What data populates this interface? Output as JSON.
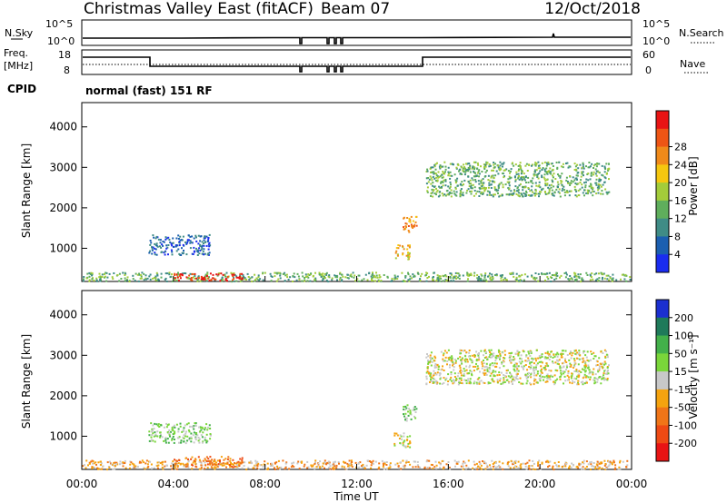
{
  "header": {
    "title": "Christmas Valley East (fitACF)",
    "beam": "Beam 07",
    "date": "12/Oct/2018"
  },
  "nsky_panel": {
    "label": "N.Sky",
    "left_ticks": [
      "10^5",
      "10^0"
    ],
    "right_label": "N.Search",
    "right_ticks": [
      "10^5",
      "10^0"
    ]
  },
  "freq_panel": {
    "label_line1": "Freq.",
    "label_line2": "[MHz]",
    "left_ticks": [
      "18",
      "8"
    ],
    "right_label": "Nave",
    "right_ticks": [
      "60",
      "0"
    ]
  },
  "cpid": {
    "label": "CPID",
    "text": "normal (fast) 151 RF"
  },
  "chart_data": [
    {
      "type": "heatmap",
      "title": "",
      "xlabel": "",
      "ylabel": "Slant Range [km]",
      "ylim": [
        180,
        4600
      ],
      "yticks": [
        "1000",
        "2000",
        "3000",
        "4000"
      ],
      "colorbar_label": "Power [dB]",
      "colorbar_ticks": [
        "4",
        "8",
        "12",
        "16",
        "20",
        "24",
        "28"
      ],
      "colors": [
        "#1a2cf0",
        "#1b5fb0",
        "#3f8c86",
        "#5fae5c",
        "#a3cc3a",
        "#f5c70f",
        "#f08a1a",
        "#ee5515",
        "#e81414"
      ],
      "regions": [
        {
          "t0": 0.0,
          "t1": 24.0,
          "r0": 200,
          "r1": 420,
          "level": 3
        },
        {
          "t0": 4.0,
          "t1": 7.0,
          "r0": 220,
          "r1": 400,
          "level": 8
        },
        {
          "t0": 2.9,
          "t1": 5.6,
          "r0": 850,
          "r1": 1350,
          "level": 1
        },
        {
          "t0": 13.6,
          "t1": 14.3,
          "r0": 750,
          "r1": 1100,
          "level": 5
        },
        {
          "t0": 14.0,
          "t1": 14.6,
          "r0": 1400,
          "r1": 1800,
          "level": 6
        },
        {
          "t0": 15.0,
          "t1": 23.0,
          "r0": 2300,
          "r1": 3150,
          "level": 3
        }
      ]
    },
    {
      "type": "heatmap",
      "title": "",
      "xlabel": "Time UT",
      "ylabel": "Slant Range [km]",
      "ylim": [
        180,
        4600
      ],
      "yticks": [
        "1000",
        "2000",
        "3000",
        "4000"
      ],
      "xticks": [
        "00:00",
        "04:00",
        "08:00",
        "12:00",
        "16:00",
        "20:00",
        "00:00"
      ],
      "xlim": [
        0,
        24
      ],
      "colorbar_label": "Velocity [m s⁻¹]",
      "colorbar_ticks": [
        "200",
        "100",
        "50",
        "15",
        "-15",
        "-50",
        "-100",
        "-200"
      ],
      "colors": [
        "#1b2fd0",
        "#1f7a5a",
        "#43b04a",
        "#7ad63a",
        "#c8c8c8",
        "#f5a30f",
        "#f07518",
        "#ee4a14",
        "#e81414"
      ],
      "regions": [
        {
          "t0": 0.0,
          "t1": 24.0,
          "r0": 200,
          "r1": 420,
          "level": 5
        },
        {
          "t0": 4.0,
          "t1": 7.0,
          "r0": 260,
          "r1": 520,
          "level": 6
        },
        {
          "t0": 2.9,
          "t1": 5.6,
          "r0": 850,
          "r1": 1350,
          "level": 3
        },
        {
          "t0": 13.6,
          "t1": 14.3,
          "r0": 750,
          "r1": 1100,
          "level": 4
        },
        {
          "t0": 14.0,
          "t1": 14.6,
          "r0": 1400,
          "r1": 1800,
          "level": 3
        },
        {
          "t0": 15.0,
          "t1": 23.0,
          "r0": 2300,
          "r1": 3150,
          "level": 4
        }
      ]
    }
  ]
}
